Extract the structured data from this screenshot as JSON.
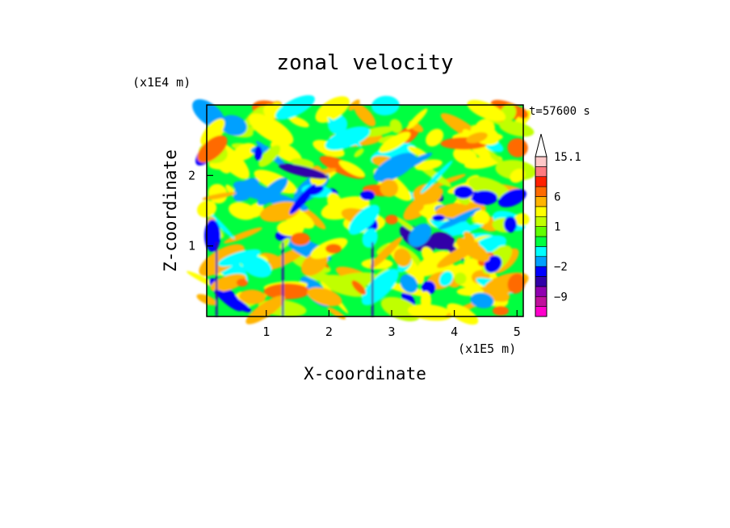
{
  "chart_data": {
    "type": "heatmap",
    "title": "zonal velocity",
    "xlabel": "X-coordinate",
    "ylabel": "Z-coordinate",
    "x_scale_label": "(x1E5 m)",
    "y_scale_label": "(x1E4 m)",
    "time_label": "t=57600 s",
    "xlim": [
      0.05,
      5.1
    ],
    "ylim": [
      0,
      3.0
    ],
    "x_ticks": [
      {
        "value": 1,
        "label": "1"
      },
      {
        "value": 2,
        "label": "2"
      },
      {
        "value": 3,
        "label": "3"
      },
      {
        "value": 4,
        "label": "4"
      },
      {
        "value": 5,
        "label": "5"
      }
    ],
    "y_ticks": [
      {
        "value": 1,
        "label": "1"
      },
      {
        "value": 2,
        "label": "2"
      }
    ],
    "colorbar": {
      "levels": [
        -15,
        -12,
        -9,
        -6,
        -4,
        -2,
        -1,
        0,
        0.5,
        1,
        2,
        4,
        6,
        9,
        12,
        15.1
      ],
      "colors": [
        "#ff00cc",
        "#c0109c",
        "#9000b0",
        "#3000a8",
        "#0000ff",
        "#00a0ff",
        "#00ffff",
        "#00ff40",
        "#60ff00",
        "#c0ff00",
        "#ffff00",
        "#ffb400",
        "#ff6a00",
        "#ff2000",
        "#ff7a80",
        "#ffc8c8"
      ],
      "extend_max": true,
      "tick_labels": [
        {
          "value": 15.1,
          "label": "15.1"
        },
        {
          "value": 6,
          "label": "6"
        },
        {
          "value": 1,
          "label": "1"
        },
        {
          "value": -2,
          "label": "−2"
        },
        {
          "value": -9,
          "label": "−9"
        }
      ]
    },
    "grid": false,
    "legend": "colorbar right"
  }
}
